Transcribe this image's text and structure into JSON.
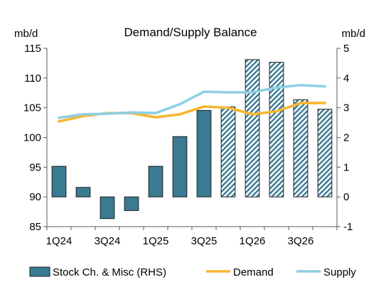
{
  "chart_data": {
    "type": "bar",
    "title": "Demand/Supply Balance",
    "left_axis": {
      "unit_label": "mb/d",
      "ylim": [
        85,
        115
      ],
      "ticks": [
        85,
        90,
        95,
        100,
        105,
        110,
        115
      ],
      "tick_labels": [
        "85",
        "90",
        "95",
        "100",
        "105",
        "110",
        "115"
      ]
    },
    "right_axis": {
      "unit_label": "mb/d",
      "ylim": [
        -1,
        5
      ],
      "ticks": [
        -1,
        0,
        1,
        2,
        3,
        4,
        5
      ],
      "tick_labels": [
        "-1",
        "0",
        "1",
        "2",
        "3",
        "4",
        "5"
      ]
    },
    "categories": [
      "1Q24",
      "2Q24",
      "3Q24",
      "4Q24",
      "1Q25",
      "2Q25",
      "3Q25",
      "4Q25",
      "1Q26",
      "2Q26",
      "3Q26",
      "4Q26"
    ],
    "x_tick_labels": [
      "1Q24",
      "3Q24",
      "1Q25",
      "3Q25",
      "1Q26",
      "3Q26"
    ],
    "grid": false,
    "legend_position": "bottom",
    "series": [
      {
        "name": "Stock Ch. & Misc (RHS)",
        "kind": "bar",
        "axis": "right",
        "color": "#3a7a93",
        "forecast_from_index": 7,
        "forecast_pattern": "hatched",
        "values": [
          1.03,
          0.32,
          -0.73,
          -0.46,
          1.03,
          2.03,
          2.91,
          3.03,
          4.62,
          4.53,
          3.27,
          2.95
        ]
      },
      {
        "name": "Demand",
        "kind": "line",
        "axis": "left",
        "color": "#f5b731",
        "values": [
          102.7,
          103.6,
          104.1,
          104.1,
          103.4,
          103.9,
          105.2,
          105.0,
          103.9,
          104.4,
          105.8,
          105.8
        ]
      },
      {
        "name": "Supply",
        "kind": "line",
        "axis": "left",
        "color": "#8ecfe3",
        "values": [
          103.3,
          103.9,
          104.0,
          104.2,
          104.1,
          105.6,
          107.7,
          107.6,
          107.6,
          108.4,
          108.8,
          108.6
        ]
      }
    ]
  }
}
